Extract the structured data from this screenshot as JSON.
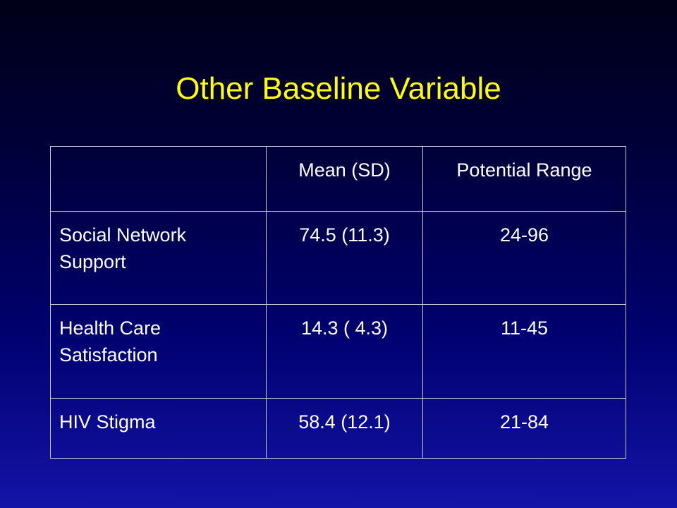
{
  "slide": {
    "title": "Other Baseline Variable"
  },
  "table": {
    "headers": [
      "",
      "Mean (SD)",
      "Potential Range"
    ],
    "rows": [
      {
        "variable": "Social Network Support",
        "mean_sd": "74.5 (11.3)",
        "range": "24-96"
      },
      {
        "variable": "Health Care Satisfaction",
        "mean_sd": "14.3 ( 4.3)",
        "range": "11-45"
      },
      {
        "variable": "HIV Stigma",
        "mean_sd": "58.4 (12.1)",
        "range": "21-84"
      }
    ]
  },
  "colors": {
    "title": "#ffff00",
    "text": "#ffffff",
    "background_top": "#000018",
    "background_bottom": "#1414a8",
    "grid_lines": "#c8c8d8"
  }
}
